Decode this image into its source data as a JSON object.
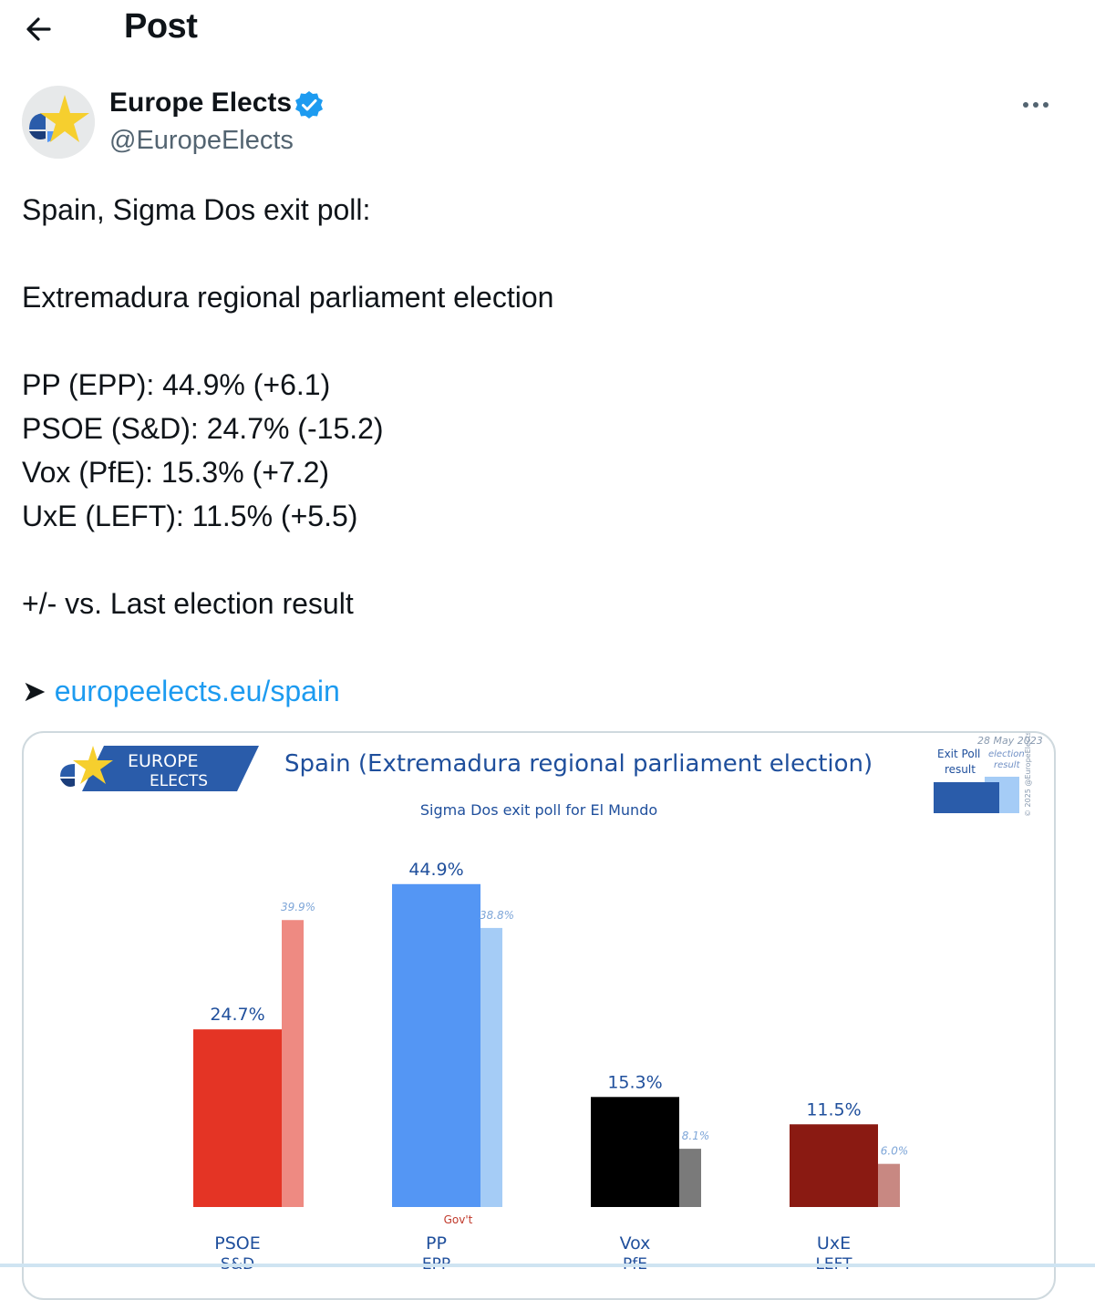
{
  "header": {
    "title": "Post"
  },
  "author": {
    "name": "Europe Elects",
    "handle": "@EuropeElects"
  },
  "post": {
    "lines": [
      "Spain, Sigma Dos exit poll:",
      "Extremadura regional parliament election",
      "PP (EPP): 44.9% (+6.1)",
      "PSOE (S&D): 24.7% (-15.2)",
      "Vox (PfE): 15.3% (+7.2)",
      "UxE (LEFT): 11.5% (+5.5)",
      "+/- vs. Last election result"
    ],
    "link_arrow": "➤",
    "link_text": "europeelects.eu/spain"
  },
  "image": {
    "logo_line1": "EUROPE",
    "logo_line2": "ELECTS",
    "legend_exit": "Exit Poll result",
    "legend_election": "election result",
    "legend_date": "28 May 2023",
    "copyright": "© 2025 @EuropeElects"
  },
  "chart_data": {
    "type": "bar",
    "title": "Spain (Extremadura regional parliament election)",
    "subtitle": "Sigma Dos exit poll for El Mundo",
    "categories": [
      "PSOE",
      "PP",
      "Vox",
      "UxE"
    ],
    "subcategories": [
      "S&D",
      "EPP",
      "PfE",
      "LEFT"
    ],
    "annotations": {
      "PP": "Gov't"
    },
    "series": [
      {
        "name": "Exit Poll result",
        "values": [
          24.7,
          44.9,
          15.3,
          11.5
        ],
        "labels": [
          "24.7%",
          "44.9%",
          "15.3%",
          "11.5%"
        ]
      },
      {
        "name": "election result",
        "values": [
          39.9,
          38.8,
          8.1,
          6.0
        ],
        "labels": [
          "39.9%",
          "38.8%",
          "8.1%",
          "6.0%"
        ]
      }
    ],
    "colors": {
      "main": [
        "#e43425",
        "#5496f4",
        "#000000",
        "#8a1a12"
      ],
      "previous": [
        "#ee8a82",
        "#a5ccf6",
        "#7a7a7a",
        "#c88882"
      ]
    },
    "ylim": [
      0,
      45
    ],
    "grid": false,
    "legend": "top-right"
  }
}
